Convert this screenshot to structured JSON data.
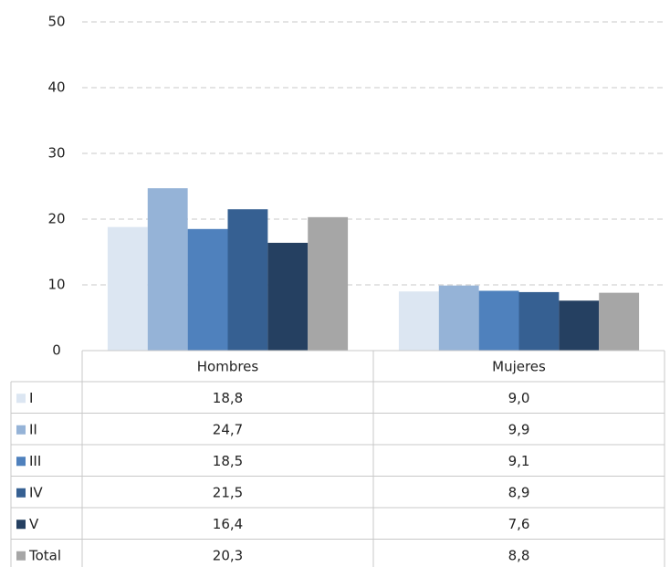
{
  "chart_data": {
    "type": "bar",
    "categories": [
      "Hombres",
      "Mujeres"
    ],
    "series": [
      {
        "name": "I",
        "color": "#dce6f2",
        "values": [
          18.8,
          9.0
        ],
        "value_labels": [
          "18,8",
          "9,0"
        ]
      },
      {
        "name": "II",
        "color": "#95b3d7",
        "values": [
          24.7,
          9.9
        ],
        "value_labels": [
          "24,7",
          "9,9"
        ]
      },
      {
        "name": "III",
        "color": "#4f81bd",
        "values": [
          18.5,
          9.1
        ],
        "value_labels": [
          "18,5",
          "9,1"
        ]
      },
      {
        "name": "IV",
        "color": "#366092",
        "values": [
          21.5,
          8.9
        ],
        "value_labels": [
          "21,5",
          "8,9"
        ]
      },
      {
        "name": "V",
        "color": "#254061",
        "values": [
          16.4,
          7.6
        ],
        "value_labels": [
          "16,4",
          "7,6"
        ]
      },
      {
        "name": "Total",
        "color": "#a6a6a6",
        "values": [
          20.3,
          8.8
        ],
        "value_labels": [
          "20,3",
          "8,8"
        ]
      }
    ],
    "ylim": [
      0,
      50
    ],
    "yticks": [
      0,
      10,
      20,
      30,
      40,
      50
    ],
    "grid": true
  }
}
